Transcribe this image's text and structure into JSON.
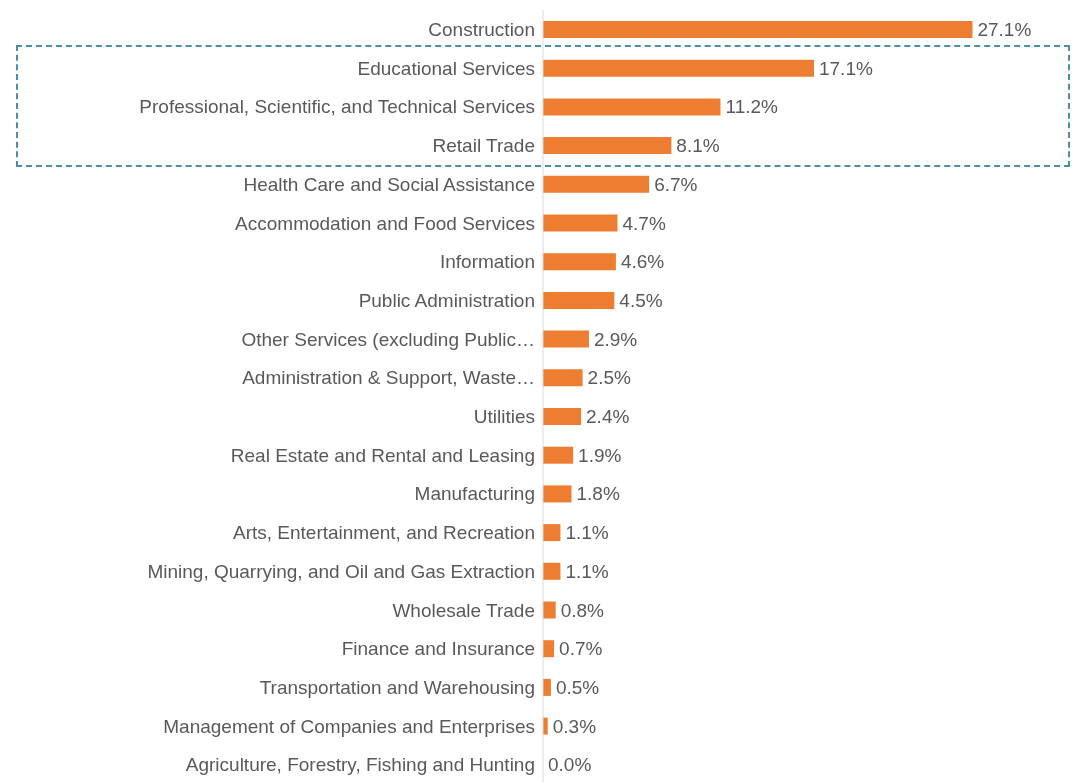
{
  "chart_data": {
    "type": "bar",
    "orientation": "horizontal",
    "categories": [
      "Construction",
      "Educational Services",
      "Professional, Scientific, and Technical Services",
      "Retail Trade",
      "Health Care and Social Assistance",
      "Accommodation and Food Services",
      "Information",
      "Public Administration",
      "Other Services (excluding Public…",
      "Administration & Support, Waste…",
      "Utilities",
      "Real Estate and Rental and Leasing",
      "Manufacturing",
      "Arts, Entertainment, and Recreation",
      "Mining, Quarrying, and Oil and Gas Extraction",
      "Wholesale Trade",
      "Finance and Insurance",
      "Transportation and Warehousing",
      "Management of Companies and Enterprises",
      "Agriculture, Forestry, Fishing and Hunting"
    ],
    "values": [
      27.1,
      17.1,
      11.2,
      8.1,
      6.7,
      4.7,
      4.6,
      4.5,
      2.9,
      2.5,
      2.4,
      1.9,
      1.8,
      1.1,
      1.1,
      0.8,
      0.7,
      0.5,
      0.3,
      0.0
    ],
    "value_labels": [
      "27.1%",
      "17.1%",
      "11.2%",
      "8.1%",
      "6.7%",
      "4.7%",
      "4.6%",
      "4.5%",
      "2.9%",
      "2.5%",
      "2.4%",
      "1.9%",
      "1.8%",
      "1.1%",
      "1.1%",
      "0.8%",
      "0.7%",
      "0.5%",
      "0.3%",
      "0.0%"
    ],
    "color": "#ed7d31"
  }
}
